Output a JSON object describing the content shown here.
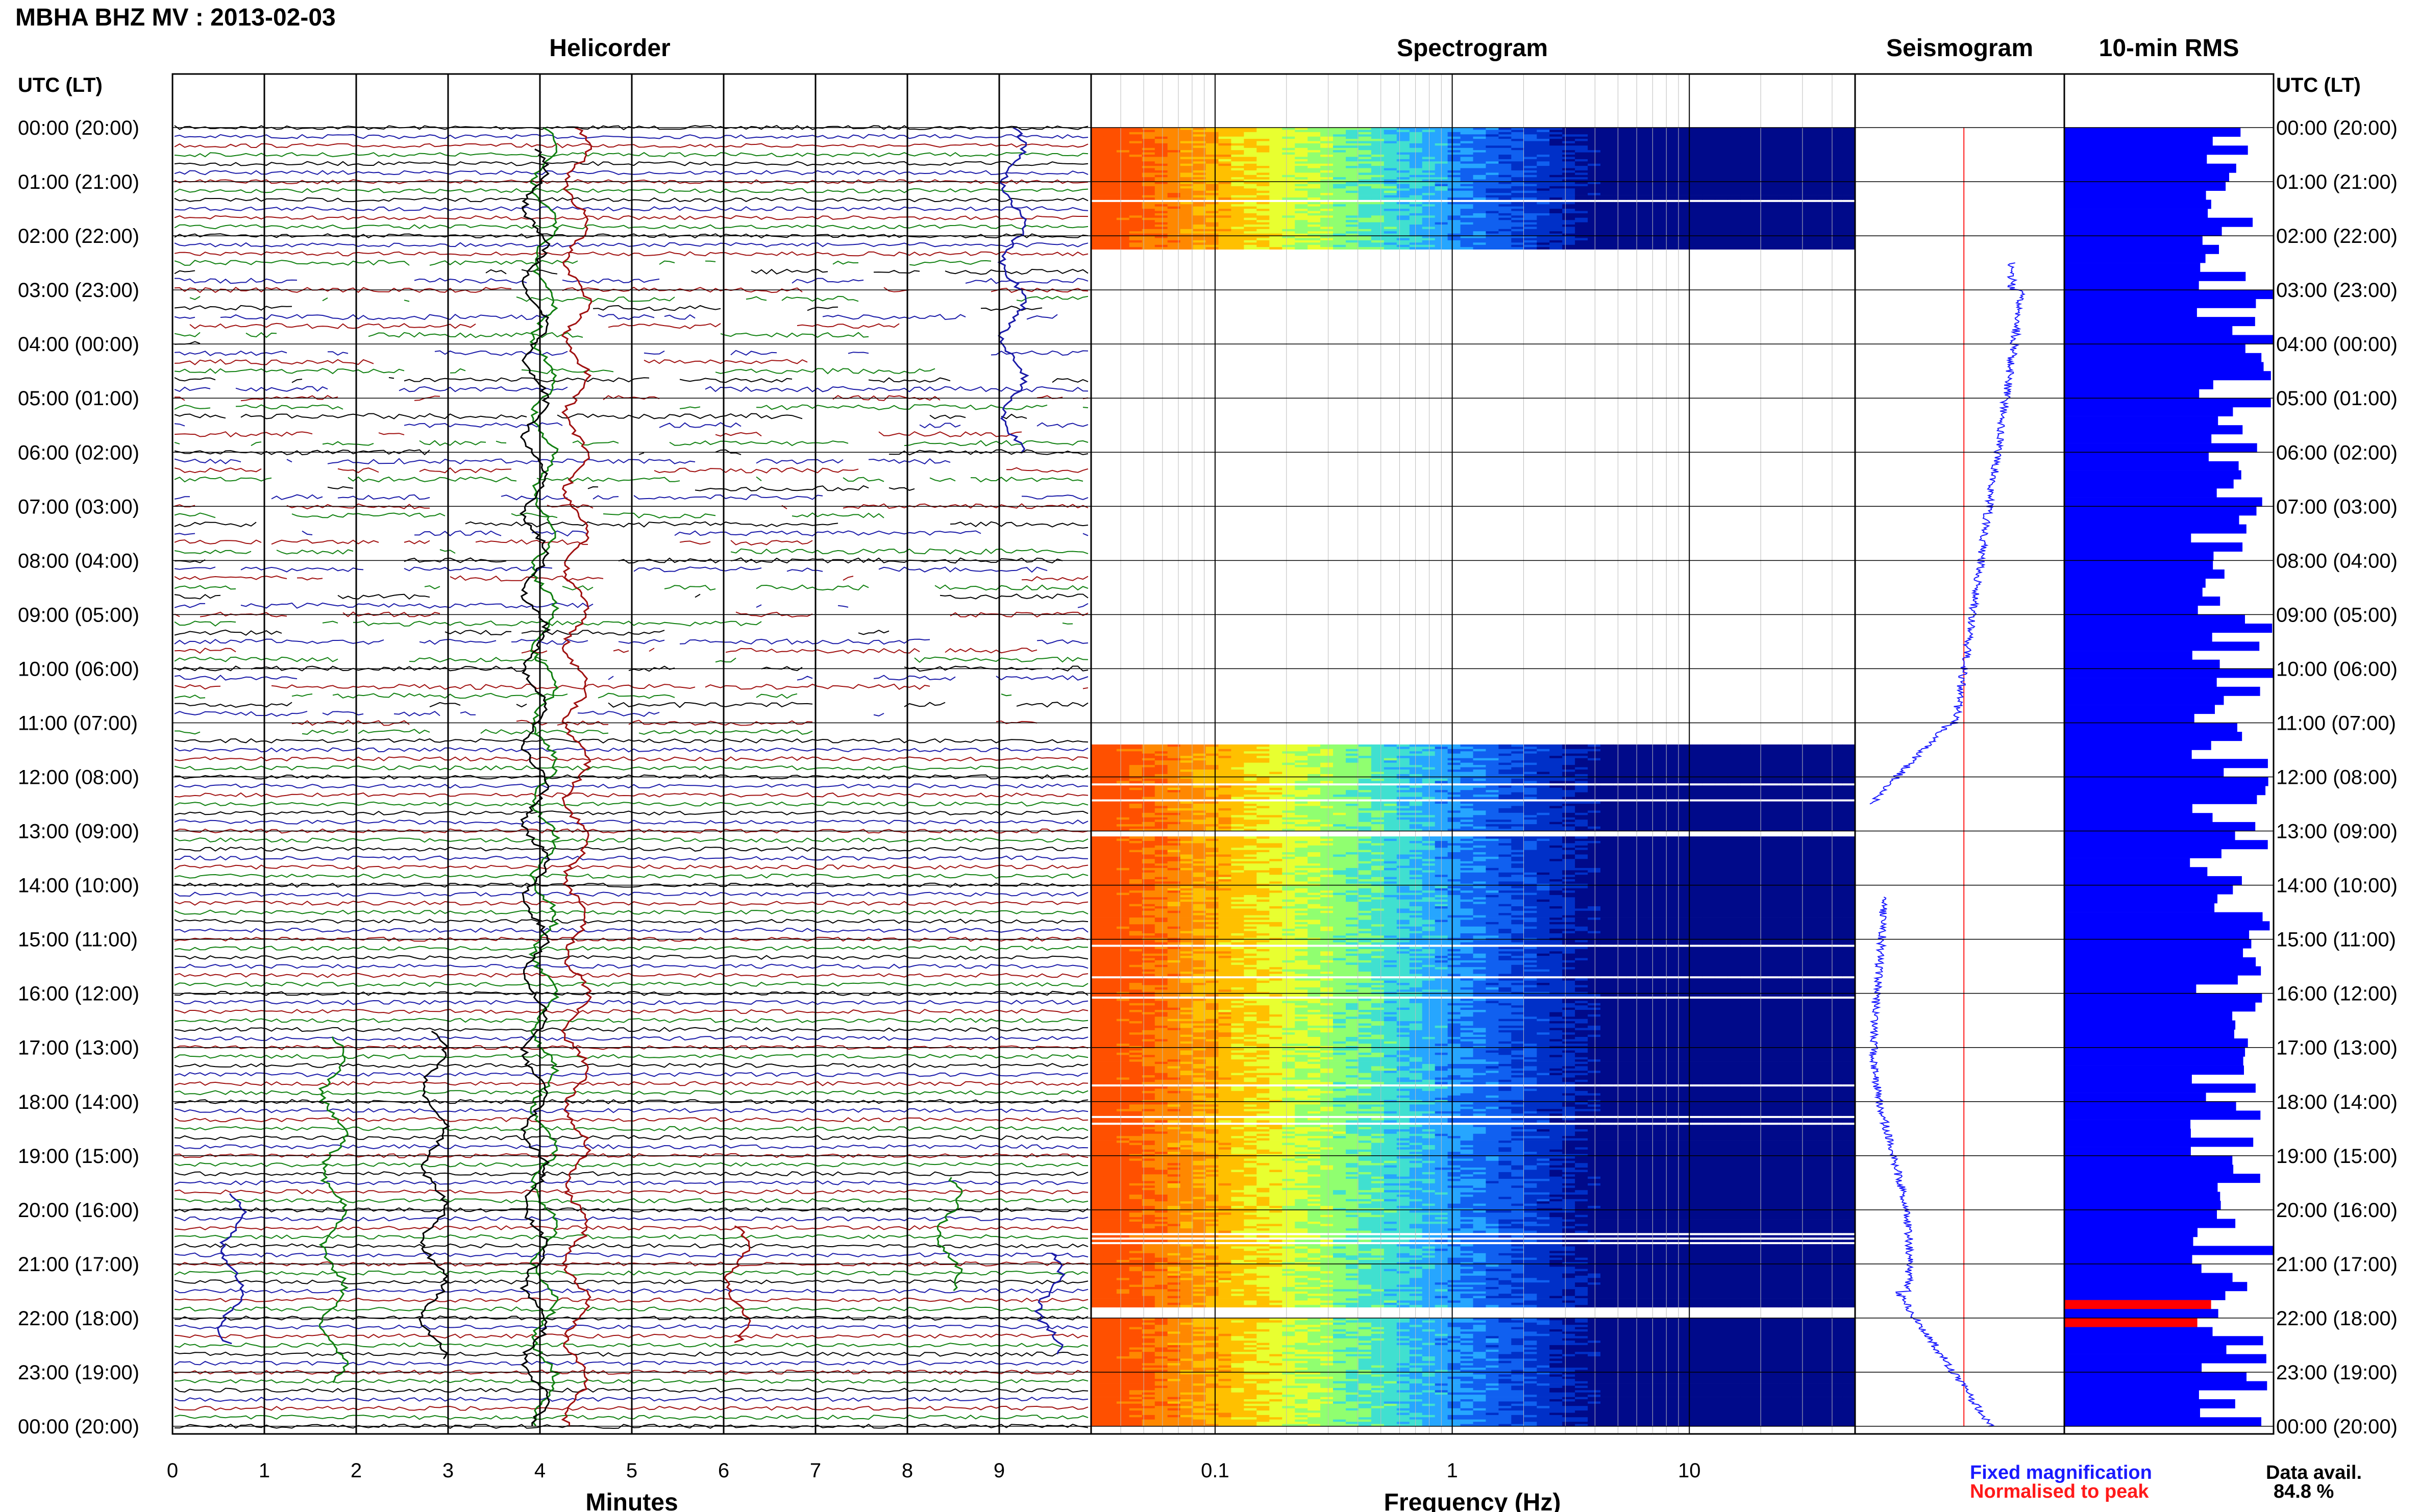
{
  "page": {
    "title": "MBHA BHZ MV : 2013-02-03",
    "time_axis_header_left": "UTC (LT)",
    "time_axis_header_right": "UTC (LT)"
  },
  "panels": {
    "helicorder_title": "Helicorder",
    "spectrogram_title": "Spectrogram",
    "seismogram_title": "Seismogram",
    "rms_title": "10-min RMS"
  },
  "legend": {
    "fixed_label": "Fixed magnification",
    "normalised_label": "Normalised to peak",
    "fixed_color": "#1a1aff",
    "normalised_color": "#ff1a1a"
  },
  "availability": {
    "label": "Data avail.",
    "value": "84.8 %"
  },
  "colors": {
    "trace_colors": [
      "#000000",
      "#1a1aa8",
      "#a01010",
      "#108010"
    ],
    "rms_bar": "#0000ff",
    "rms_peak": "#ff0000",
    "spec_low": "#000a8a",
    "spec_mid": "#26a6ff",
    "spec_high": "#ff6600"
  },
  "chart_data": [
    {
      "type": "line",
      "title": "Helicorder",
      "xlabel": "Minutes",
      "x_ticks": [
        "0",
        "1",
        "2",
        "3",
        "4",
        "5",
        "6",
        "7",
        "8",
        "9"
      ],
      "xlim": [
        0,
        10
      ],
      "y_ticks": [
        "00:00 (20:00)",
        "01:00 (21:00)",
        "02:00 (22:00)",
        "03:00 (23:00)",
        "04:00 (00:00)",
        "05:00 (01:00)",
        "06:00 (02:00)",
        "07:00 (03:00)",
        "08:00 (04:00)",
        "09:00 (05:00)",
        "10:00 (06:00)",
        "11:00 (07:00)",
        "12:00 (08:00)",
        "13:00 (09:00)",
        "14:00 (10:00)",
        "15:00 (11:00)",
        "16:00 (12:00)",
        "17:00 (13:00)",
        "18:00 (14:00)",
        "19:00 (15:00)",
        "20:00 (16:00)",
        "21:00 (17:00)",
        "22:00 (18:00)",
        "23:00 (19:00)",
        "00:00 (20:00)"
      ],
      "ylabel": "UTC (LT)",
      "lines_per_hour": 6,
      "gap_hours": [
        2.4,
        11.2
      ],
      "grid": true
    },
    {
      "type": "heatmap",
      "title": "Spectrogram",
      "xlabel": "Frequency (Hz)",
      "x_scale": "log",
      "x_ticks": [
        "0.1",
        "1",
        "10"
      ],
      "xlim": [
        0.03,
        50
      ],
      "data_segments_hours": [
        [
          0.0,
          2.25
        ],
        [
          11.4,
          13.0
        ],
        [
          13.1,
          21.8
        ],
        [
          22.0,
          24.0
        ]
      ],
      "dominant_band_hz": [
        0.03,
        0.1
      ]
    },
    {
      "type": "line",
      "title": "Seismogram",
      "series": [
        {
          "name": "Fixed magnification",
          "color": "#1a1aff"
        },
        {
          "name": "Normalised to peak",
          "color": "#ff1a1a"
        }
      ]
    },
    {
      "type": "bar",
      "title": "10-min RMS",
      "orientation": "horizontal",
      "interval_minutes": 10,
      "bins": 144
    }
  ]
}
